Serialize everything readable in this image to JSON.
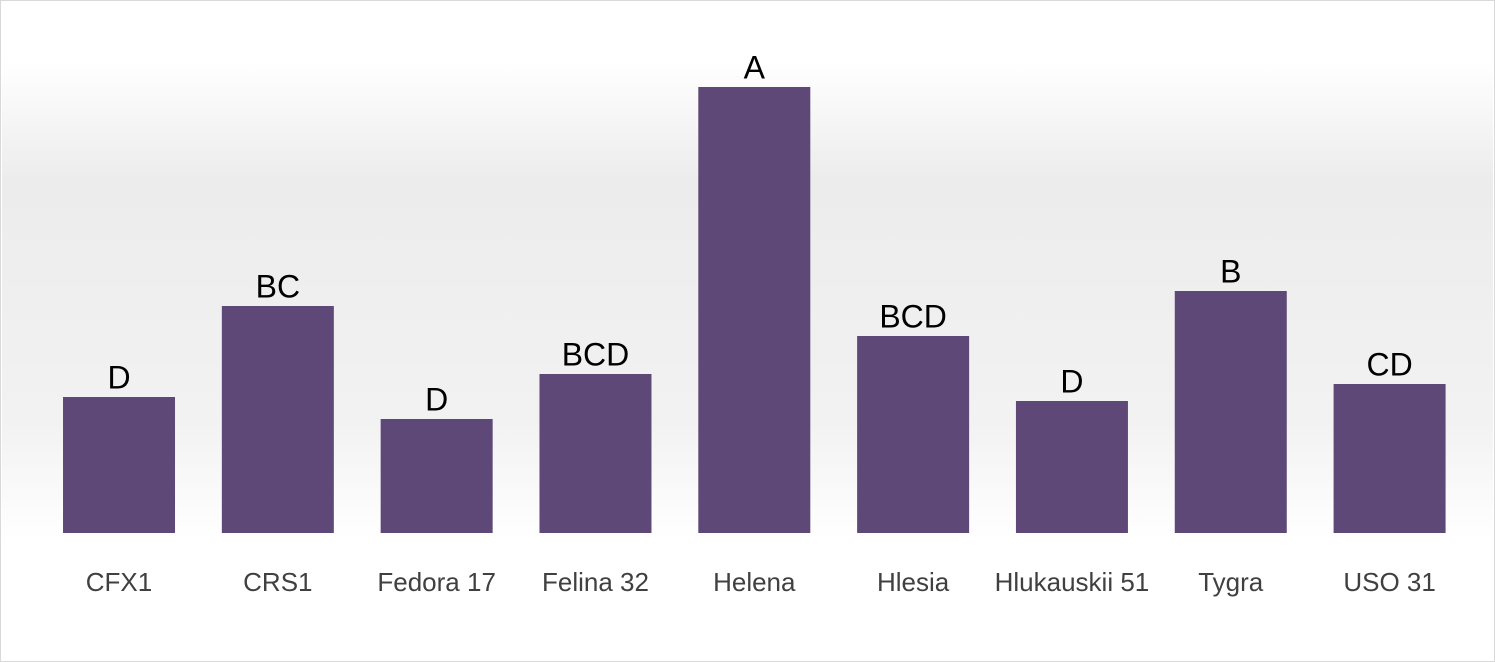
{
  "chart_data": {
    "type": "bar",
    "categories": [
      "CFX1",
      "CRS1",
      "Fedora 17",
      "Felina 32",
      "Helena",
      "Hlesia",
      "Hlukauskii 51",
      "Tygra",
      "USO 31"
    ],
    "values": [
      136,
      227,
      114,
      159,
      446,
      197,
      132,
      242,
      149
    ],
    "value_labels": [
      "D",
      "BC",
      "D",
      "BCD",
      "A",
      "BCD",
      "D",
      "B",
      "CD"
    ],
    "color": "#5e4878",
    "ylim": [
      0,
      500
    ]
  }
}
